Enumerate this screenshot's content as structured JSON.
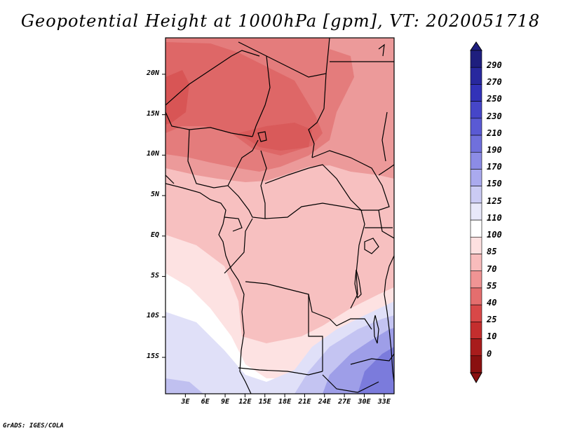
{
  "title": "Geopotential Height at 1000hPa [gpm], VT: 2020051718",
  "credit": "GrADS: IGES/COLA",
  "map": {
    "lat_labels": [
      "20N",
      "15N",
      "10N",
      "5N",
      "EQ",
      "5S",
      "10S",
      "15S"
    ],
    "lat_values": [
      20,
      15,
      10,
      5,
      0,
      -5,
      -10,
      -15
    ],
    "lon_labels": [
      "3E",
      "6E",
      "9E",
      "12E",
      "15E",
      "18E",
      "21E",
      "24E",
      "27E",
      "30E",
      "33E"
    ],
    "lon_values": [
      3,
      6,
      9,
      12,
      15,
      18,
      21,
      24,
      27,
      30,
      33
    ],
    "lon_range": [
      0,
      34.5
    ],
    "lat_range": [
      -19.5,
      24.5
    ]
  },
  "colorbar": {
    "labels": [
      "290",
      "270",
      "250",
      "230",
      "210",
      "190",
      "170",
      "150",
      "125",
      "110",
      "100",
      "85",
      "70",
      "55",
      "40",
      "25",
      "10",
      "0"
    ],
    "colors": [
      "#1e1e7e",
      "#28289e",
      "#3232b8",
      "#4646c8",
      "#5a5ad4",
      "#7070dc",
      "#8c8ce6",
      "#aaaaee",
      "#cbcbf4",
      "#e8e8fa",
      "#ffffff",
      "#fde0e0",
      "#f8bcbc",
      "#f09494",
      "#e46e6e",
      "#d84848",
      "#c42e2e",
      "#a81c1c",
      "#8a1010"
    ]
  }
}
